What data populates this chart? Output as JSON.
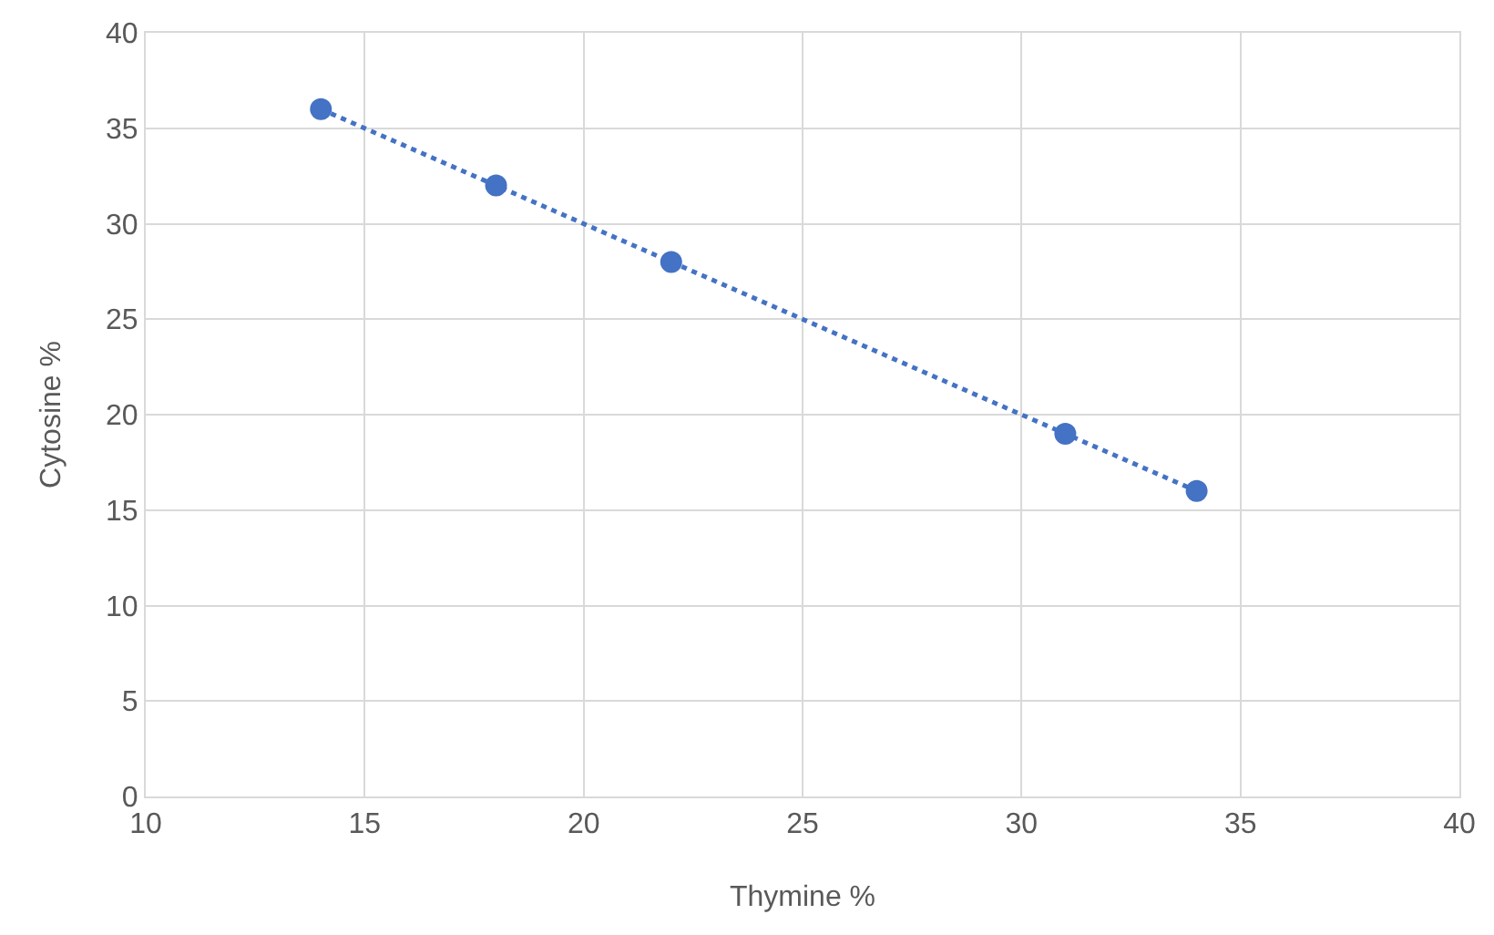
{
  "chart_data": {
    "type": "scatter",
    "xlabel": "Thymine %",
    "ylabel": "Cytosine %",
    "x": [
      14,
      18,
      22,
      31,
      34
    ],
    "series": [
      {
        "color": "#4472c4",
        "marker": "circle",
        "values": [
          36,
          32,
          28,
          19,
          16
        ]
      },
      {
        "type": "line",
        "color": "#4472c4",
        "marker": "none",
        "line_style": "dotted",
        "x": [
          14,
          34
        ],
        "values": [
          36,
          16
        ]
      }
    ],
    "xlim": [
      10,
      40
    ],
    "xticks": [
      10,
      15,
      20,
      25,
      30,
      35,
      40
    ],
    "ylim": [
      0,
      40
    ],
    "yticks": [
      0,
      5,
      10,
      15,
      20,
      25,
      30,
      35,
      40
    ],
    "grid": true
  }
}
